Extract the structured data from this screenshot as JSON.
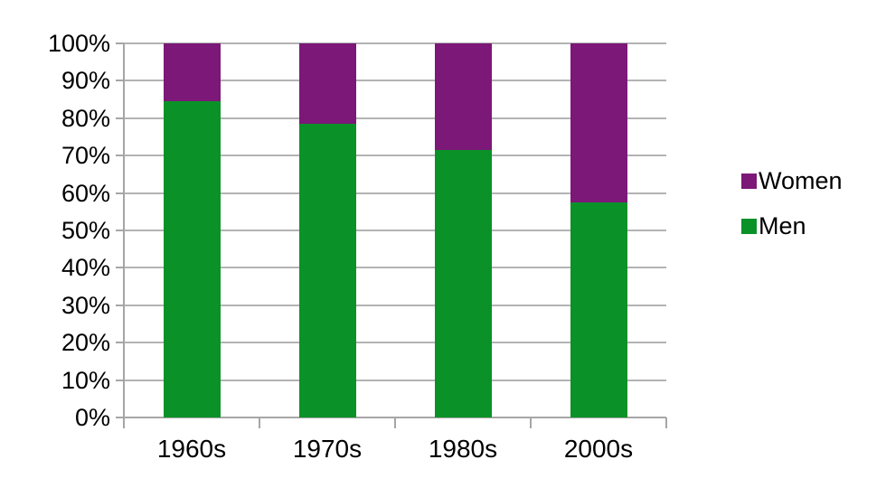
{
  "chart_data": {
    "type": "bar",
    "subtype": "stacked-100-percent",
    "title": "",
    "xlabel": "",
    "ylabel": "",
    "categories": [
      "1960s",
      "1970s",
      "1980s",
      "2000s"
    ],
    "series": [
      {
        "name": "Women",
        "color": "#7c1878",
        "values": [
          15.5,
          21.5,
          28.5,
          42.5
        ]
      },
      {
        "name": "Men",
        "color": "#0a9228",
        "values": [
          84.5,
          78.5,
          71.5,
          57.5
        ]
      }
    ],
    "stack_order_bottom_to_top": [
      "Men",
      "Women"
    ],
    "y_axis": {
      "min": 0,
      "max": 100,
      "step": 10,
      "tick_labels": [
        "100%",
        "90%",
        "80%",
        "70%",
        "60%",
        "50%",
        "40%",
        "30%",
        "20%",
        "10%",
        "0%"
      ]
    },
    "grid": "horizontal",
    "legend": {
      "position": "right",
      "entries": [
        "Women",
        "Men"
      ]
    },
    "colors": {
      "gridline": "#b3b3b3",
      "axis": "#a6a6a6",
      "text": "#000000",
      "background": "#ffffff"
    }
  }
}
